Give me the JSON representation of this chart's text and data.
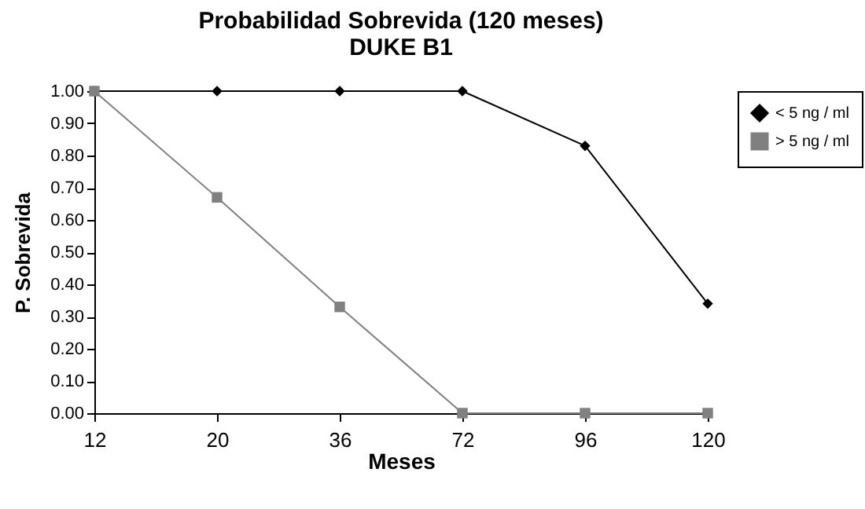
{
  "chart_data": {
    "type": "line",
    "title": "Probabilidad Sobrevida (120 meses)",
    "subtitle": "DUKE B1",
    "xlabel": "Meses",
    "ylabel": "P. Sobrevida",
    "categories": [
      "12",
      "20",
      "36",
      "72",
      "96",
      "120"
    ],
    "series": [
      {
        "name": "< 5 ng / ml",
        "color": "#000000",
        "marker": "diamond",
        "values": [
          1,
          1,
          1,
          1,
          0.83,
          0.34
        ]
      },
      {
        "name": "> 5 ng / ml",
        "color": "#808080",
        "marker": "square",
        "values": [
          1,
          0.67,
          0.33,
          0,
          0,
          0
        ]
      }
    ],
    "ylim": [
      0,
      1
    ],
    "yticks": [
      {
        "value": 0,
        "label": "0.00"
      },
      {
        "value": 0.1,
        "label": "0.10"
      },
      {
        "value": 0.2,
        "label": "0.20"
      },
      {
        "value": 0.3,
        "label": "0.30"
      },
      {
        "value": 0.4,
        "label": "0.40"
      },
      {
        "value": 0.5,
        "label": "0.50"
      },
      {
        "value": 0.6,
        "label": "0.60"
      },
      {
        "value": 0.7,
        "label": "0.70"
      },
      {
        "value": 0.8,
        "label": "0.80"
      },
      {
        "value": 0.9,
        "label": "0.90"
      },
      {
        "value": 1,
        "label": "1.00"
      }
    ],
    "grid": false,
    "legend": "right",
    "line_style": "solid"
  }
}
